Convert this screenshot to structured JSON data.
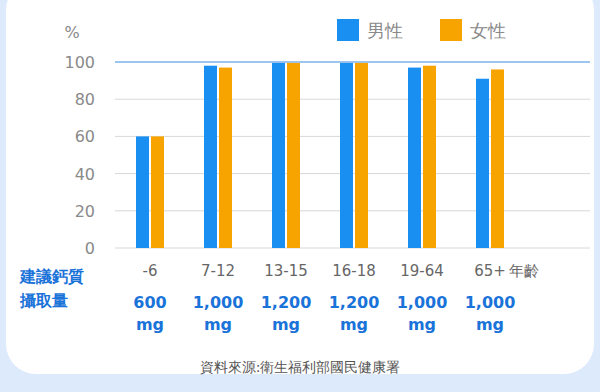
{
  "chart_data": {
    "type": "bar",
    "ylabel": "%",
    "xlabel": "年齡",
    "categories": [
      "-6",
      "7-12",
      "13-15",
      "16-18",
      "19-64",
      "65+"
    ],
    "series": [
      {
        "name": "男性",
        "color": "#1a8ff2",
        "values": [
          60,
          98,
          99.5,
          99.5,
          97,
          91
        ]
      },
      {
        "name": "女性",
        "color": "#f7a300",
        "values": [
          60,
          97,
          99.5,
          99.5,
          98,
          96
        ]
      }
    ],
    "ylim": [
      0,
      100
    ],
    "yticks": [
      0,
      20,
      40,
      60,
      80,
      100
    ],
    "grid": true,
    "legend": "upper right",
    "intake": {
      "title": [
        "建議鈣質",
        "攝取量"
      ],
      "values": [
        600,
        1000,
        1200,
        1200,
        1000,
        1000
      ],
      "value_labels": [
        "600",
        "1,000",
        "1,200",
        "1,200",
        "1,000",
        "1,000"
      ],
      "unit": "mg"
    },
    "source": "資料來源:衛生福利部國民健康署"
  }
}
